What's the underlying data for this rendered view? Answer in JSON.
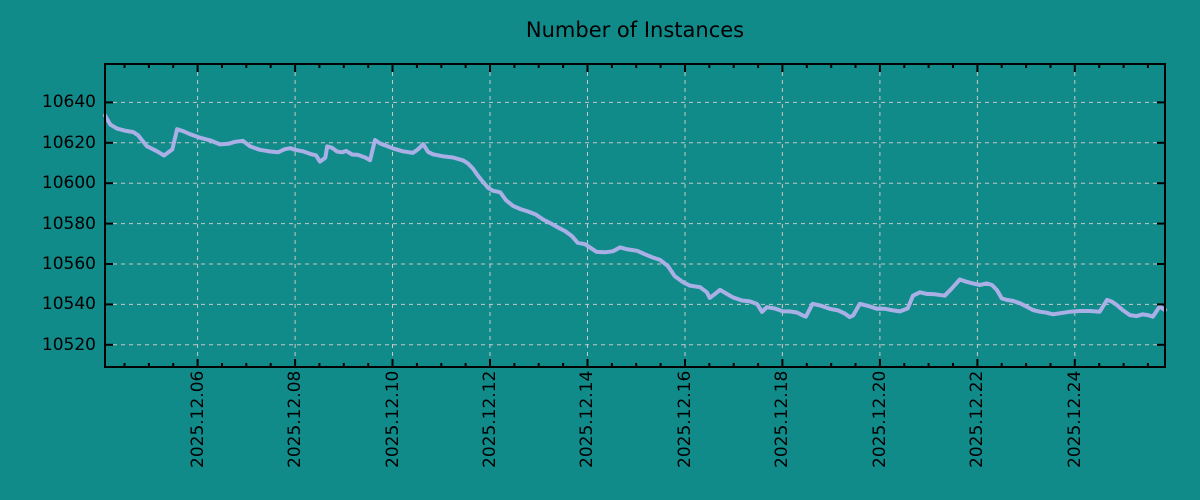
{
  "title": "Number of Instances",
  "colors": {
    "background": "#118a8a",
    "line": "#aab0e6",
    "grid": "#c8c8c8",
    "axis": "#000000",
    "text": "#000000"
  },
  "chart_data": {
    "type": "line",
    "title": "Number of Instances",
    "xlabel": "",
    "ylabel": "",
    "grid": true,
    "legend": "none",
    "x_axis": {
      "unit": "day of December 2025 (fractional)",
      "tick_labels": [
        "2025.12.06",
        "2025.12.08",
        "2025.12.10",
        "2025.12.12",
        "2025.12.14",
        "2025.12.16",
        "2025.12.18",
        "2025.12.20",
        "2025.12.22",
        "2025.12.24"
      ],
      "tick_days": [
        6,
        8,
        10,
        12,
        14,
        16,
        18,
        20,
        22,
        24
      ],
      "minor_tick_interval_days": 0.5,
      "xlim_days": [
        4.1,
        25.85
      ]
    },
    "y_axis": {
      "tick_labels": [
        "10520",
        "10540",
        "10560",
        "10580",
        "10600",
        "10620",
        "10640"
      ],
      "ticks": [
        10520,
        10540,
        10560,
        10580,
        10600,
        10620,
        10640
      ],
      "ylim": [
        10509,
        10659
      ]
    },
    "series": [
      {
        "name": "Number of Instances",
        "color": "#aab0e6",
        "x_days": [
          4.1,
          4.21,
          4.35,
          4.51,
          4.68,
          4.78,
          4.96,
          5.17,
          5.31,
          5.48,
          5.58,
          5.7,
          5.85,
          6.05,
          6.26,
          6.46,
          6.63,
          6.77,
          6.93,
          7.08,
          7.28,
          7.49,
          7.65,
          7.79,
          7.9,
          8.0,
          8.16,
          8.31,
          8.43,
          8.51,
          8.62,
          8.66,
          8.76,
          8.86,
          8.96,
          9.05,
          9.17,
          9.29,
          9.44,
          9.54,
          9.64,
          9.74,
          9.87,
          10.01,
          10.21,
          10.42,
          10.52,
          10.63,
          10.73,
          10.83,
          11.04,
          11.24,
          11.45,
          11.55,
          11.65,
          11.75,
          11.86,
          11.96,
          12.06,
          12.21,
          12.33,
          12.47,
          12.62,
          12.78,
          12.94,
          13.09,
          13.23,
          13.37,
          13.54,
          13.68,
          13.8,
          13.95,
          14.05,
          14.19,
          14.36,
          14.52,
          14.67,
          14.83,
          15.02,
          15.18,
          15.34,
          15.49,
          15.65,
          15.79,
          15.96,
          16.1,
          16.31,
          16.45,
          16.51,
          16.66,
          16.72,
          16.86,
          16.98,
          17.17,
          17.33,
          17.48,
          17.58,
          17.68,
          17.84,
          18.01,
          18.15,
          18.3,
          18.42,
          18.48,
          18.62,
          18.77,
          18.97,
          19.14,
          19.28,
          19.38,
          19.45,
          19.59,
          19.79,
          19.94,
          20.1,
          20.27,
          20.41,
          20.57,
          20.68,
          20.82,
          20.96,
          21.13,
          21.33,
          21.48,
          21.64,
          21.78,
          21.91,
          22.05,
          22.19,
          22.3,
          22.4,
          22.5,
          22.6,
          22.73,
          22.87,
          23.01,
          23.14,
          23.28,
          23.42,
          23.55,
          23.69,
          23.9,
          24.1,
          24.31,
          24.51,
          24.66,
          24.76,
          24.86,
          24.98,
          25.13,
          25.27,
          25.39,
          25.5,
          25.6,
          25.74,
          25.85
        ],
        "y": [
          10633.5,
          10629,
          10627,
          10626,
          10625.3,
          10623.7,
          10618.3,
          10615.8,
          10613.7,
          10616.7,
          10626.7,
          10625.8,
          10624.2,
          10622.5,
          10621.2,
          10619.2,
          10619.5,
          10620.5,
          10621,
          10618.2,
          10616.5,
          10615.7,
          10615.3,
          10616.8,
          10617.3,
          10616.5,
          10615.8,
          10614.5,
          10613.8,
          10610.7,
          10612.6,
          10618.2,
          10617.5,
          10615.7,
          10615.3,
          10616,
          10614.2,
          10614,
          10612.7,
          10611.4,
          10621.4,
          10619.7,
          10618.5,
          10617.2,
          10615.8,
          10615,
          10616.7,
          10619.3,
          10615.5,
          10614.3,
          10613.3,
          10612.7,
          10611.3,
          10609.7,
          10607.2,
          10603.8,
          10600.5,
          10597.7,
          10596.3,
          10595.5,
          10591.5,
          10588.8,
          10587.2,
          10586,
          10584.5,
          10582,
          10580.3,
          10578.4,
          10576.3,
          10573.8,
          10570.5,
          10569.8,
          10568.2,
          10566,
          10565.8,
          10566.3,
          10568.2,
          10567.2,
          10566.5,
          10564.8,
          10563.2,
          10562,
          10559,
          10554,
          10551,
          10549.3,
          10548.5,
          10546,
          10543.2,
          10546,
          10547.2,
          10545.2,
          10543.5,
          10541.9,
          10541.5,
          10540.2,
          10536.3,
          10538.6,
          10538,
          10536.5,
          10536.5,
          10536,
          10534.5,
          10533.9,
          10540.3,
          10539.5,
          10537.8,
          10537,
          10535.5,
          10533.7,
          10534.5,
          10540.3,
          10539,
          10537.8,
          10537.8,
          10537,
          10536.5,
          10538,
          10544.3,
          10546,
          10545.2,
          10545,
          10544.3,
          10548,
          10552.3,
          10551.2,
          10550.4,
          10549.6,
          10550.4,
          10549.6,
          10547.1,
          10543,
          10542.2,
          10541.7,
          10540.6,
          10538.9,
          10537.2,
          10536.4,
          10535.9,
          10535.1,
          10535.6,
          10536.4,
          10536.7,
          10536.7,
          10536.4,
          10542.2,
          10541.4,
          10539.7,
          10537.2,
          10534.7,
          10534.2,
          10535.1,
          10534.7,
          10533.9,
          10538.9,
          10537.2
        ]
      }
    ]
  }
}
